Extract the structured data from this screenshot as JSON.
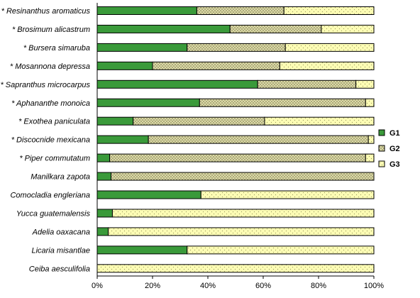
{
  "chart_data": {
    "type": "bar",
    "orientation": "horizontal",
    "stacked": "percent",
    "categories": [
      "* Resinanthus aromaticus",
      "* Brosimum alicastrum",
      "* Bursera simaruba",
      "* Mosannona depressa",
      "* Sapranthus microcarpus",
      "* Aphananthe monoica",
      "* Exothea paniculata",
      "* Discocnide mexicana",
      "* Piper commutatum",
      "Manilkara zapota",
      "Comocladia engleriana",
      "Yucca guatemalensis",
      "Adelia oaxacana",
      "Licaria misantlae",
      "Ceiba aesculifolia"
    ],
    "series": [
      {
        "name": "G1",
        "values": [
          36,
          48,
          32.5,
          20,
          58,
          37,
          13,
          18.5,
          4.5,
          5,
          37.5,
          5.5,
          4,
          32.5,
          0
        ]
      },
      {
        "name": "G2",
        "values": [
          31.5,
          33,
          35.5,
          46,
          35.5,
          60,
          47.5,
          79.5,
          92.5,
          95,
          0,
          0,
          0,
          0,
          0
        ]
      },
      {
        "name": "G3",
        "values": [
          32.5,
          19,
          32,
          34,
          6.5,
          3,
          39.5,
          2,
          3,
          0,
          62.5,
          94.5,
          96,
          67.5,
          100
        ]
      }
    ],
    "colors": {
      "G1": "#3a9a3a",
      "G2": "#d8d6a4",
      "G3": "#fcfcb4"
    },
    "x_ticks": [
      "0%",
      "20%",
      "40%",
      "60%",
      "80%",
      "100%"
    ],
    "xlim": [
      0,
      100
    ],
    "legend_position": "right",
    "grid": false
  }
}
